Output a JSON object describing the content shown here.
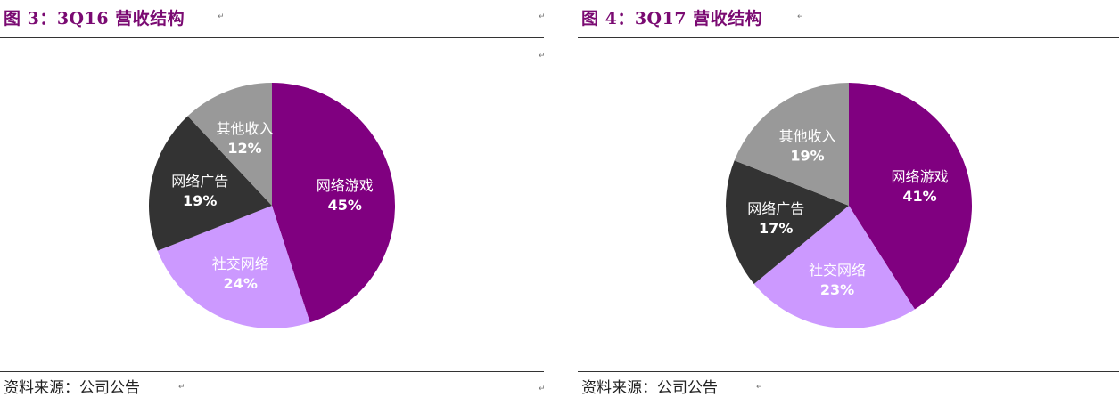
{
  "panels": [
    {
      "title": "图 3：3Q16 营收结构",
      "source": "资料来源：公司公告",
      "colors": [
        "#800080",
        "#CC99FF",
        "#333333",
        "#999999"
      ],
      "chart_data": {
        "type": "pie",
        "title": "图 3：3Q16 营收结构",
        "categories": [
          "网络游戏",
          "社交网络",
          "网络广告",
          "其他收入"
        ],
        "values": [
          45,
          24,
          19,
          12
        ],
        "data_labels": [
          "45%",
          "24%",
          "19%",
          "12%"
        ],
        "legend": "none"
      }
    },
    {
      "title": "图 4：3Q17 营收结构",
      "source": "资料来源：公司公告",
      "colors": [
        "#800080",
        "#CC99FF",
        "#333333",
        "#999999"
      ],
      "chart_data": {
        "type": "pie",
        "title": "图 4：3Q17 营收结构",
        "categories": [
          "网络游戏",
          "社交网络",
          "网络广告",
          "其他收入"
        ],
        "values": [
          41,
          23,
          17,
          19
        ],
        "data_labels": [
          "41%",
          "23%",
          "17%",
          "19%"
        ],
        "legend": "none"
      }
    }
  ]
}
